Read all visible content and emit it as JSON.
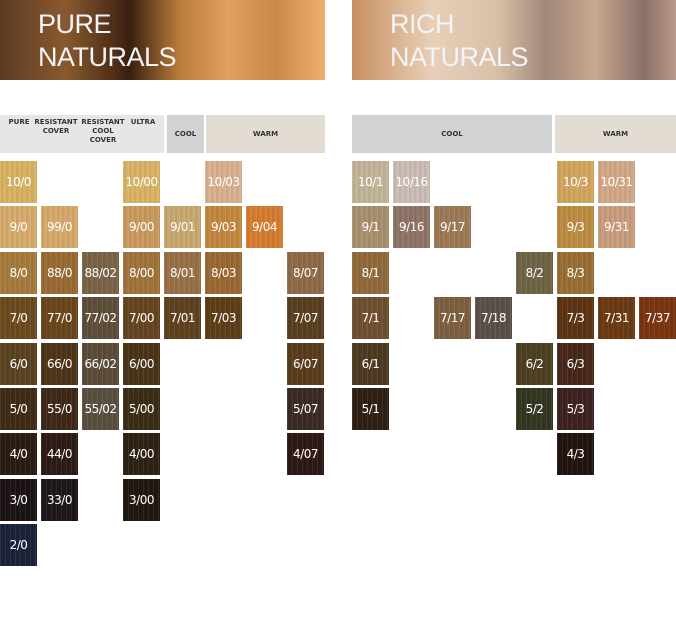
{
  "pure": {
    "title_line1": "PURE",
    "title_line2": "NATURALS",
    "headers": {
      "pure": "PURE",
      "resistant_cover": "RESISTANT COVER",
      "resistant_cool_cover": "RESISTANT COOL COVER",
      "ultra": "ULTRA",
      "cool": "COOL",
      "warm": "WARM"
    },
    "rows": [
      [
        {
          "label": "10/0",
          "color": "#d8b262"
        },
        null,
        null,
        {
          "label": "10/00",
          "color": "#d9b365"
        },
        null,
        {
          "label": "10/03",
          "color": "#d8b090"
        },
        null,
        null
      ],
      [
        {
          "label": "9/0",
          "color": "#d6ab6c"
        },
        {
          "label": "99/0",
          "color": "#d6a86a"
        },
        null,
        {
          "label": "9/00",
          "color": "#c99a5e"
        },
        {
          "label": "9/01",
          "color": "#c9a870"
        },
        {
          "label": "9/03",
          "color": "#c3873e"
        },
        {
          "label": "9/04",
          "color": "#d57c30"
        },
        null
      ],
      [
        {
          "label": "8/0",
          "color": "#a57a3c"
        },
        {
          "label": "88/0",
          "color": "#9a6a34"
        },
        {
          "label": "88/02",
          "color": "#7a6448"
        },
        {
          "label": "8/00",
          "color": "#a0733a"
        },
        {
          "label": "8/01",
          "color": "#987048"
        },
        {
          "label": "8/03",
          "color": "#9a6834"
        },
        null,
        {
          "label": "8/07",
          "color": "#8e6a48"
        }
      ],
      [
        {
          "label": "7/0",
          "color": "#6c4a1e"
        },
        {
          "label": "77/0",
          "color": "#6a461c"
        },
        {
          "label": "77/02",
          "color": "#5e4e3a"
        },
        {
          "label": "7/00",
          "color": "#654420"
        },
        {
          "label": "7/01",
          "color": "#5e4220"
        },
        {
          "label": "7/03",
          "color": "#5e3e18"
        },
        null,
        {
          "label": "7/07",
          "color": "#5a3e20"
        }
      ],
      [
        {
          "label": "6/0",
          "color": "#5a4220"
        },
        {
          "label": "66/0",
          "color": "#4e3418"
        },
        {
          "label": "66/02",
          "color": "#5a4c38"
        },
        {
          "label": "6/00",
          "color": "#4a3418"
        },
        null,
        null,
        null,
        {
          "label": "6/07",
          "color": "#5a3c1c"
        }
      ],
      [
        {
          "label": "5/0",
          "color": "#3e2c16"
        },
        {
          "label": "55/0",
          "color": "#3e2818"
        },
        {
          "label": "55/02",
          "color": "#57503e"
        },
        {
          "label": "5/00",
          "color": "#3c2c16"
        },
        null,
        null,
        null,
        {
          "label": "5/07",
          "color": "#3c2a24"
        }
      ],
      [
        {
          "label": "4/0",
          "color": "#2a1c12"
        },
        {
          "label": "44/0",
          "color": "#2e1a16"
        },
        null,
        {
          "label": "4/00",
          "color": "#2e2214"
        },
        null,
        null,
        null,
        {
          "label": "4/07",
          "color": "#2c1814"
        }
      ],
      [
        {
          "label": "3/0",
          "color": "#1c1414"
        },
        {
          "label": "33/0",
          "color": "#1e161a"
        },
        null,
        {
          "label": "3/00",
          "color": "#20180e"
        },
        null,
        null,
        null,
        null
      ],
      [
        {
          "label": "2/0",
          "color": "#1a2338"
        },
        null,
        null,
        null,
        null,
        null,
        null,
        null
      ]
    ]
  },
  "rich": {
    "title_line1": "RICH",
    "title_line2": "NATURALS",
    "headers": {
      "cool": "COOL",
      "warm": "WARM"
    },
    "rows": [
      [
        {
          "label": "10/1",
          "color": "#c2b498"
        },
        {
          "label": "10/16",
          "color": "#cbbcb4"
        },
        null,
        null,
        null,
        {
          "label": "10/3",
          "color": "#d2a55c"
        },
        {
          "label": "10/31",
          "color": "#d2a888"
        },
        null
      ],
      [
        {
          "label": "9/1",
          "color": "#a8906e"
        },
        {
          "label": "9/16",
          "color": "#8e7466"
        },
        {
          "label": "9/17",
          "color": "#9c7a56"
        },
        null,
        null,
        {
          "label": "9/3",
          "color": "#bc8c42"
        },
        {
          "label": "9/31",
          "color": "#c89c7c"
        },
        null
      ],
      [
        {
          "label": "8/1",
          "color": "#906a3a"
        },
        null,
        null,
        null,
        {
          "label": "8/2",
          "color": "#6e6446"
        },
        {
          "label": "8/3",
          "color": "#9a6e34"
        },
        null,
        null
      ],
      [
        {
          "label": "7/1",
          "color": "#6e5030"
        },
        null,
        {
          "label": "7/17",
          "color": "#7c6040"
        },
        {
          "label": "7/18",
          "color": "#5a5048"
        },
        null,
        {
          "label": "7/3",
          "color": "#5c3412"
        },
        {
          "label": "7/31",
          "color": "#6a3a14"
        },
        {
          "label": "7/37",
          "color": "#7a3410"
        }
      ],
      [
        {
          "label": "6/1",
          "color": "#4e3a22"
        },
        null,
        null,
        null,
        {
          "label": "6/2",
          "color": "#4c4020"
        },
        {
          "label": "6/3",
          "color": "#48281a"
        },
        null,
        null
      ],
      [
        {
          "label": "5/1",
          "color": "#2e2014"
        },
        null,
        null,
        null,
        {
          "label": "5/2",
          "color": "#333620"
        },
        {
          "label": "5/3",
          "color": "#3c2220"
        },
        null,
        null
      ],
      [
        null,
        null,
        null,
        null,
        null,
        {
          "label": "4/3",
          "color": "#22140e"
        },
        null,
        null
      ]
    ]
  }
}
